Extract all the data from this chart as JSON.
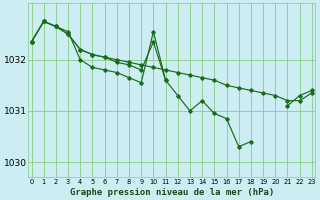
{
  "xlabel": "Graphe pression niveau de la mer (hPa)",
  "bg_color": "#cceef2",
  "line_color": "#1a6b1a",
  "grid_color": "#88cc88",
  "x": [
    0,
    1,
    2,
    3,
    4,
    5,
    6,
    7,
    8,
    9,
    10,
    11,
    12,
    13,
    14,
    15,
    16,
    17,
    18,
    19,
    20,
    21,
    22,
    23
  ],
  "series1": [
    1032.35,
    1032.75,
    1032.65,
    1032.55,
    1032.0,
    1031.85,
    1031.8,
    1031.75,
    1031.65,
    1031.55,
    1032.55,
    1031.6,
    1031.3,
    1031.0,
    1031.2,
    1030.95,
    1030.85,
    1030.3,
    1030.4,
    null,
    null,
    1031.1,
    1031.3,
    1031.4
  ],
  "series2": [
    1032.35,
    1032.75,
    1032.65,
    1032.5,
    1032.2,
    1032.1,
    1032.05,
    1031.95,
    1031.9,
    1031.8,
    1032.35,
    1031.6,
    null,
    null,
    null,
    null,
    null,
    null,
    null,
    null,
    null,
    null,
    null,
    null
  ],
  "series3": [
    1032.35,
    1032.75,
    1032.65,
    1032.5,
    1032.2,
    1032.1,
    1032.05,
    1032.0,
    1031.95,
    1031.9,
    1031.85,
    1031.8,
    1031.75,
    1031.7,
    1031.65,
    1031.6,
    1031.5,
    1031.45,
    1031.4,
    1031.35,
    1031.3,
    1031.2,
    1031.2,
    1031.35
  ],
  "ylim": [
    1029.7,
    1033.1
  ],
  "yticks": [
    1030,
    1031,
    1032
  ],
  "xlim": [
    -0.3,
    23.3
  ],
  "xtick_labels": [
    "0",
    "1",
    "2",
    "3",
    "4",
    "5",
    "6",
    "7",
    "8",
    "9",
    "10",
    "11",
    "12",
    "13",
    "14",
    "15",
    "16",
    "17",
    "18",
    "19",
    "20",
    "21",
    "22",
    "23"
  ]
}
